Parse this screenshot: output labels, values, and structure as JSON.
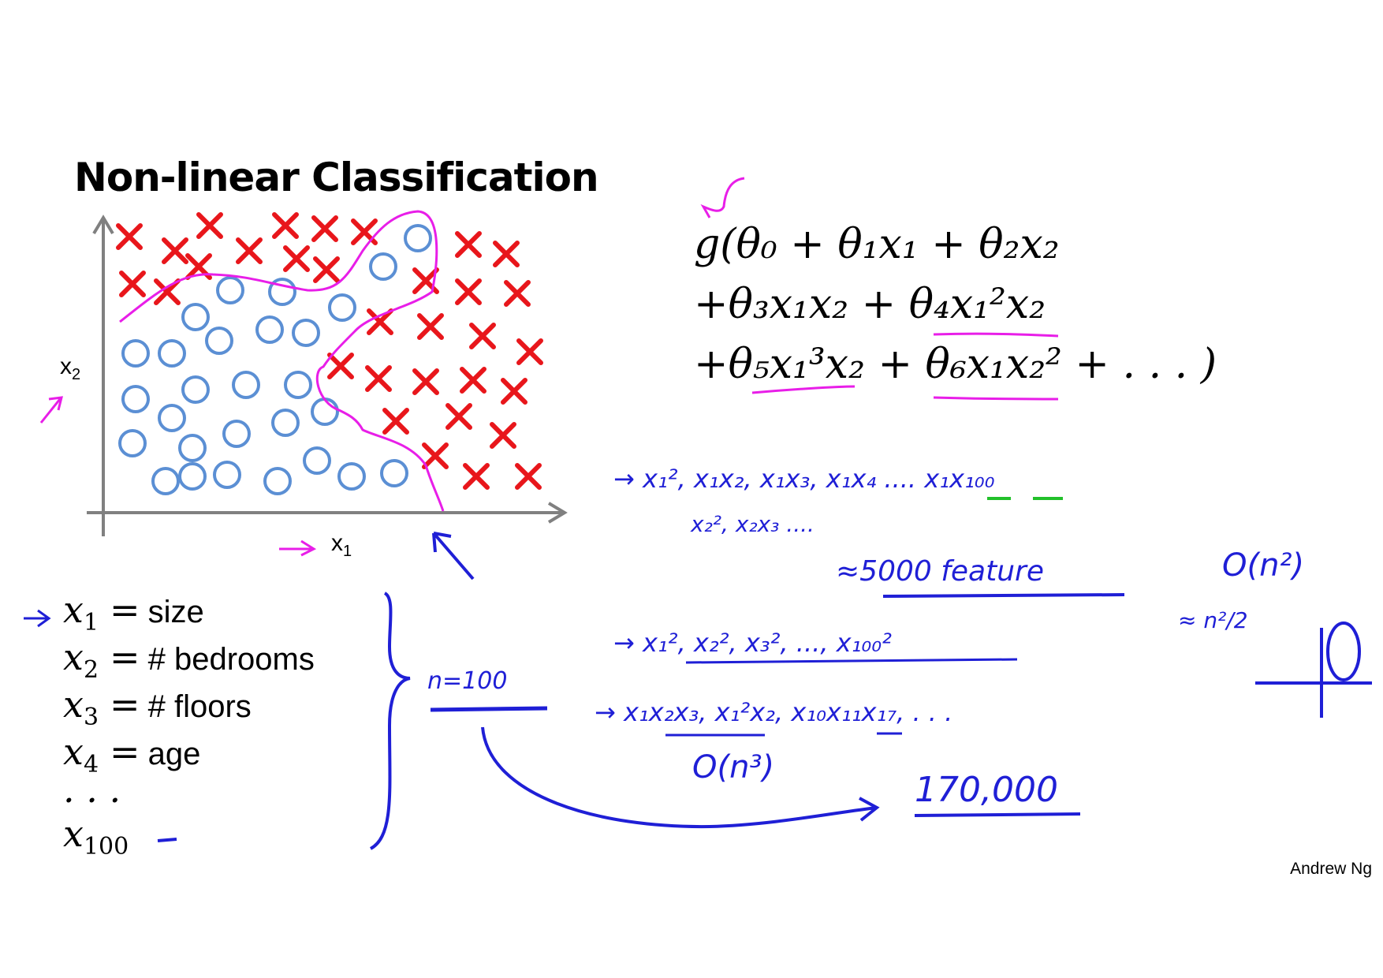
{
  "title": "Non-linear Classification",
  "plot": {
    "x_axis_label": "x",
    "x_axis_sub": "1",
    "y_axis_label": "x",
    "y_axis_sub": "2",
    "class_colors": {
      "positive": "#e8161b",
      "negative": "#5b8fd4",
      "boundary": "#e81ee8"
    },
    "positive_marker": "red-x",
    "negative_marker": "blue-circle"
  },
  "hypothesis": {
    "line1": "g(θ₀ + θ₁x₁ + θ₂x₂",
    "line2": "+θ₃x₁x₂ + θ₄x₁²x₂",
    "line3": "+θ₅x₁³x₂ + θ₆x₁x₂² + . . . )"
  },
  "features": [
    {
      "symbol": "x",
      "sub": "1",
      "eq": "=",
      "desc": "size"
    },
    {
      "symbol": "x",
      "sub": "2",
      "eq": "=",
      "desc": "# bedrooms"
    },
    {
      "symbol": "x",
      "sub": "3",
      "eq": "=",
      "desc": "# floors"
    },
    {
      "symbol": "x",
      "sub": "4",
      "eq": "=",
      "desc": "age"
    },
    {
      "symbol": ". . .",
      "sub": "",
      "eq": "",
      "desc": ""
    },
    {
      "symbol": "x",
      "sub": "100",
      "eq": "",
      "desc": ""
    }
  ],
  "annotations": {
    "quadratic_terms": "→ x₁², x₁x₂, x₁x₃, x₁x₄ .... x₁x₁₀₀",
    "quadratic_terms_2": "x₂², x₂x₃ ....",
    "approx_features": "≈5000 feature",
    "order_n2": "O(n²)",
    "approx_n2_over_2": "≈ n²/2",
    "squares_only": "→ x₁², x₂², x₃², ..., x₁₀₀²",
    "n_value": "n=100",
    "cubic_terms": "→ x₁x₂x₃, x₁²x₂, x₁₀x₁₁x₁₇, . . .",
    "order_n3": "O(n³)",
    "cubic_count": "170,000",
    "ink_color": "#1f1fd6"
  },
  "author": "Andrew Ng"
}
